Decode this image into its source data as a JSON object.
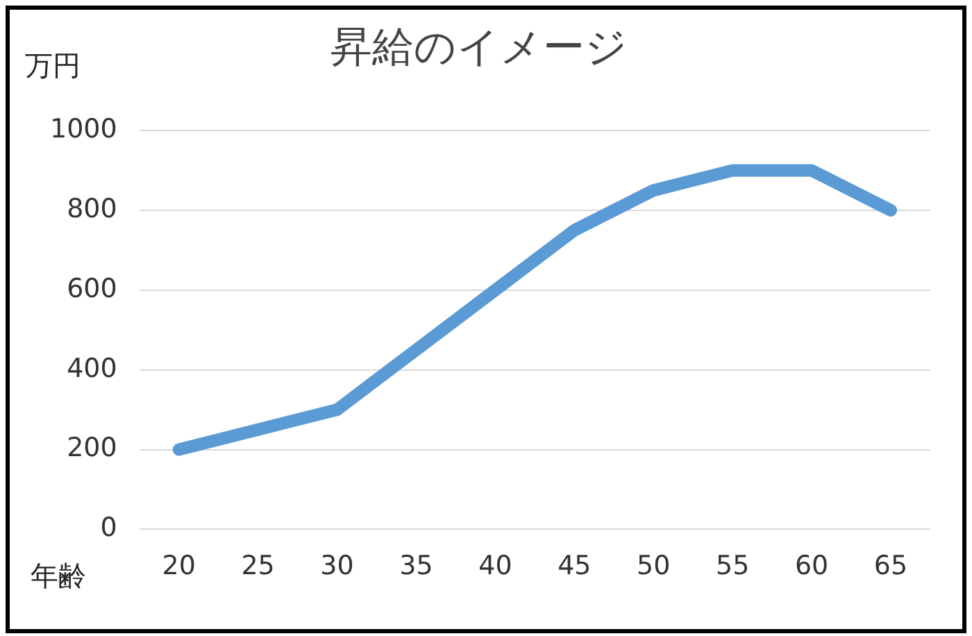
{
  "chart_data": {
    "type": "line",
    "title": "昇給のイメージ",
    "xlabel": "年齢",
    "ylabel": "万円",
    "categories": [
      "20",
      "25",
      "30",
      "35",
      "40",
      "45",
      "50",
      "55",
      "60",
      "65"
    ],
    "values": [
      200,
      250,
      300,
      450,
      600,
      750,
      850,
      900,
      900,
      800
    ],
    "color": "#5b9bd5",
    "ylim": [
      0,
      1000
    ],
    "yticks": [
      0,
      200,
      400,
      600,
      800,
      1000
    ],
    "grid": "y",
    "legend": false,
    "marker": "none",
    "line_style": "solid"
  }
}
